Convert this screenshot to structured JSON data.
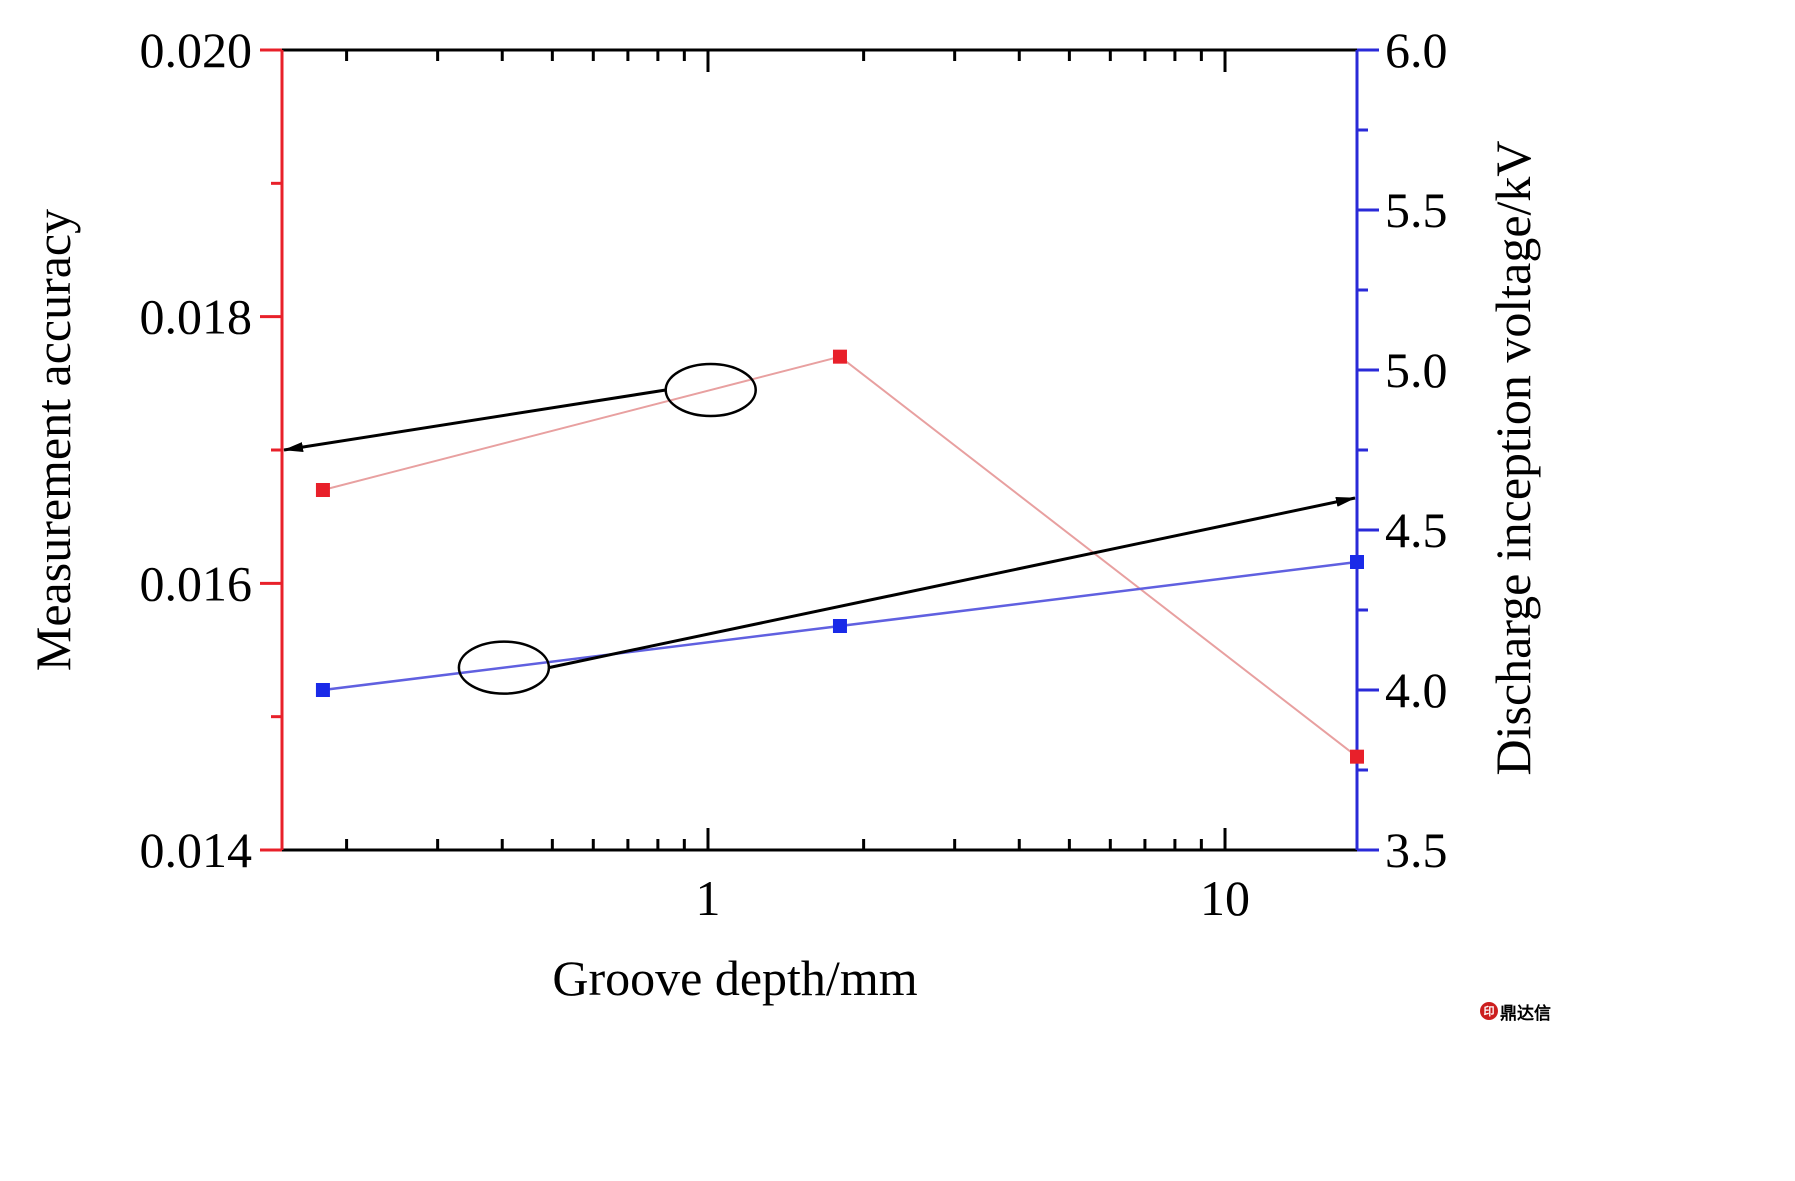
{
  "chart_data": {
    "type": "line",
    "title": "",
    "xlabel": "Groove depth/mm",
    "xscale": "log",
    "xlim": [
      0.15,
      18
    ],
    "x_tick_labels": [
      "1",
      "10"
    ],
    "x_tick_values": [
      1,
      10
    ],
    "grid": false,
    "y_left": {
      "label": "Measurement accuracy",
      "range": [
        0.014,
        0.02
      ],
      "tick_labels": [
        "0.014",
        "0.016",
        "0.018",
        "0.020"
      ],
      "tick_values": [
        0.014,
        0.016,
        0.018,
        0.02
      ],
      "minor_step": 0.001,
      "color": "#e8202a"
    },
    "y_right": {
      "label": "Discharge inception voltage/kV",
      "range": [
        3.5,
        6.0
      ],
      "tick_labels": [
        "3.5",
        "4.0",
        "4.5",
        "5.0",
        "5.5",
        "6.0"
      ],
      "tick_values": [
        3.5,
        4.0,
        4.5,
        5.0,
        5.5,
        6.0
      ],
      "minor_step": 0.25,
      "color": "#2a2ad8"
    },
    "series": [
      {
        "name": "Measurement accuracy",
        "axis": "left",
        "x": [
          0.18,
          1.8,
          18
        ],
        "values": [
          0.0167,
          0.0177,
          0.0147
        ],
        "line_color": "#e8a0a0",
        "marker_color": "#e8202a"
      },
      {
        "name": "Discharge inception voltage",
        "axis": "right",
        "x": [
          0.18,
          1.8,
          18
        ],
        "values": [
          4.0,
          4.2,
          4.4
        ],
        "line_color": "#6060e0",
        "marker_color": "#1a2ae8"
      }
    ],
    "annotations": [
      {
        "type": "ellipse-arrow",
        "series": "Measurement accuracy",
        "points_to": "left-axis"
      },
      {
        "type": "ellipse-arrow",
        "series": "Discharge inception voltage",
        "points_to": "right-axis"
      }
    ]
  },
  "watermark": {
    "text": "鼎达信"
  }
}
